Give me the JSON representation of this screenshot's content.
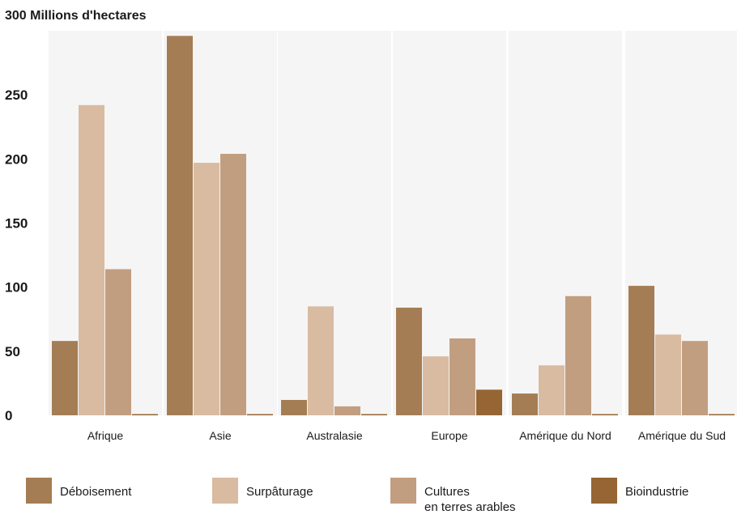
{
  "chart_data": {
    "type": "bar",
    "title": "300 Millions d'hectares",
    "xlabel": "",
    "ylabel": "",
    "ylim": [
      0,
      300
    ],
    "yticks": [
      "0",
      "50",
      "100",
      "150",
      "200",
      "250"
    ],
    "grid": false,
    "legend_position": "bottom",
    "categories": [
      "Afrique",
      "Asie",
      "Australasie",
      "Europe",
      "Amérique du Nord",
      "Amérique du Sud"
    ],
    "series": [
      {
        "name": "Déboisement",
        "color": "#a57d54",
        "values": [
          58,
          296,
          12,
          84,
          17,
          101
        ]
      },
      {
        "name": "Surpâturage",
        "color": "#d8bba1",
        "values": [
          242,
          197,
          85,
          46,
          39,
          63
        ]
      },
      {
        "name": "Cultures\nen terres arables",
        "color": "#c29e80",
        "values": [
          114,
          204,
          7,
          60,
          93,
          58
        ]
      },
      {
        "name": "Bioindustrie",
        "color": "#956534",
        "values": [
          0,
          0,
          0,
          20,
          0,
          0
        ]
      }
    ]
  }
}
